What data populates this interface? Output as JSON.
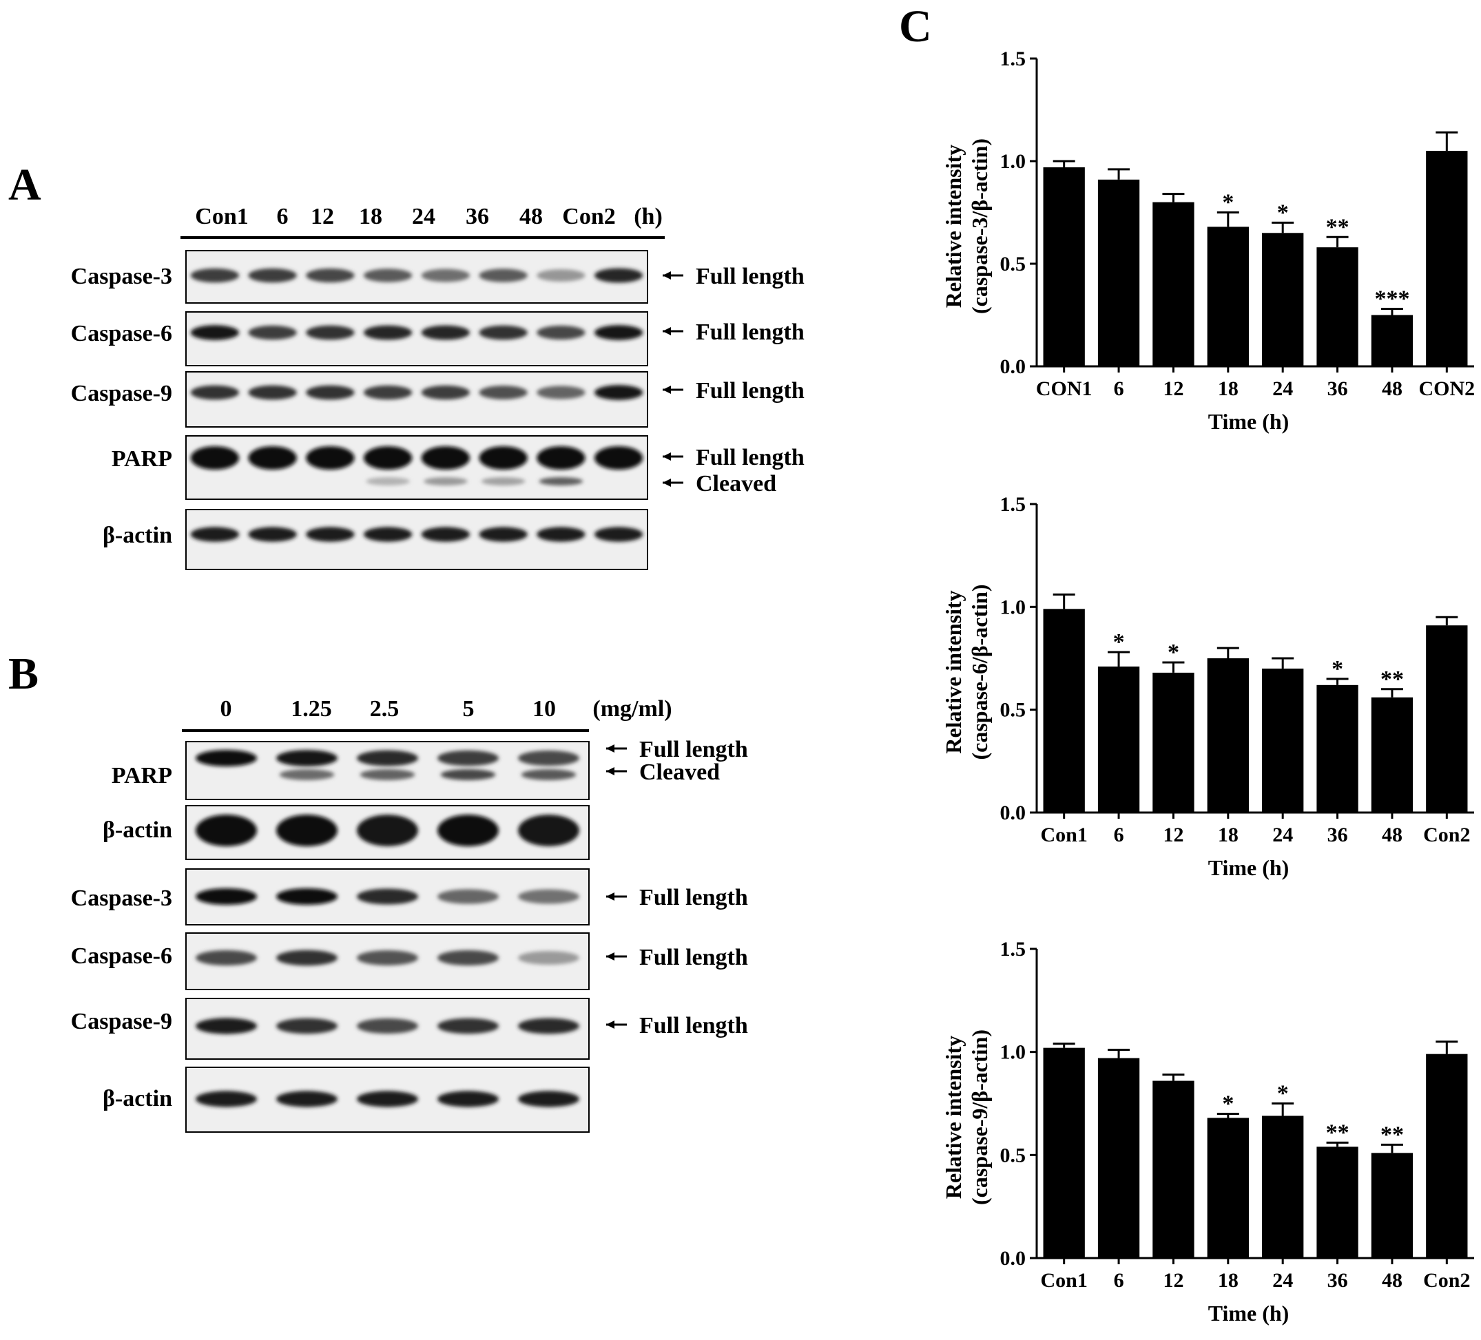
{
  "panels": {
    "A": {
      "letter": "A",
      "lanes": [
        "Con1",
        "6",
        "12",
        "18",
        "24",
        "36",
        "48",
        "Con2",
        "(h)"
      ],
      "blots": [
        {
          "label": "Caspase-3",
          "annotations": [
            "Full length"
          ],
          "intensity": [
            0.75,
            0.75,
            0.7,
            0.6,
            0.5,
            0.6,
            0.3,
            0.85
          ]
        },
        {
          "label": "Caspase-6",
          "annotations": [
            "Full length"
          ],
          "intensity": [
            0.95,
            0.75,
            0.8,
            0.85,
            0.85,
            0.8,
            0.7,
            0.95
          ]
        },
        {
          "label": "Caspase-9",
          "annotations": [
            "Full length"
          ],
          "intensity": [
            0.8,
            0.8,
            0.8,
            0.75,
            0.75,
            0.65,
            0.55,
            0.95
          ]
        },
        {
          "label": "PARP",
          "annotations": [
            "Full length",
            "Cleaved"
          ],
          "intensity": [
            1,
            1,
            1,
            1,
            1,
            1,
            1,
            1
          ],
          "cleaved": [
            0,
            0,
            0,
            0.25,
            0.4,
            0.35,
            0.75,
            0
          ]
        },
        {
          "label": "β-actin",
          "annotations": [],
          "intensity": [
            0.9,
            0.9,
            0.9,
            0.9,
            0.9,
            0.9,
            0.9,
            0.9
          ]
        }
      ]
    },
    "B": {
      "letter": "B",
      "lanes": [
        "0",
        "1.25",
        "2.5",
        "5",
        "10",
        "(mg/ml)"
      ],
      "blots": [
        {
          "label": "PARP",
          "annotations": [
            "Full length",
            "Cleaved"
          ],
          "intensity": [
            1,
            0.95,
            0.85,
            0.75,
            0.7
          ],
          "cleaved": [
            0,
            0.6,
            0.65,
            0.8,
            0.7
          ]
        },
        {
          "label": "β-actin",
          "annotations": [],
          "intensity": [
            1,
            1,
            0.95,
            1,
            0.95
          ]
        },
        {
          "label": "Caspase-3",
          "annotations": [
            "Full length"
          ],
          "intensity": [
            1,
            1,
            0.85,
            0.55,
            0.5
          ]
        },
        {
          "label": "Caspase-6",
          "annotations": [
            "Full length"
          ],
          "intensity": [
            0.7,
            0.8,
            0.65,
            0.7,
            0.3
          ]
        },
        {
          "label": "Caspase-9",
          "annotations": [
            "Full length"
          ],
          "intensity": [
            0.9,
            0.8,
            0.7,
            0.8,
            0.85
          ]
        },
        {
          "label": "β-actin",
          "annotations": [],
          "intensity": [
            0.9,
            0.9,
            0.9,
            0.9,
            0.9
          ]
        }
      ]
    },
    "C": {
      "letter": "C"
    }
  },
  "chart_data": [
    {
      "type": "bar",
      "categories": [
        "CON1",
        "6",
        "12",
        "18",
        "24",
        "36",
        "48",
        "CON2"
      ],
      "values": [
        0.97,
        0.91,
        0.8,
        0.68,
        0.65,
        0.58,
        0.25,
        1.05
      ],
      "errors": [
        0.03,
        0.05,
        0.04,
        0.07,
        0.05,
        0.05,
        0.03,
        0.09
      ],
      "significance": [
        "",
        "",
        "",
        "*",
        "*",
        "**",
        "***",
        ""
      ],
      "xlabel": "Time (h)",
      "ylabel": [
        "Relative intensity",
        "(caspase-3/β-actin)"
      ],
      "ylim": [
        0,
        1.5
      ],
      "yticks": [
        "0.0",
        "0.5",
        "1.0",
        "1.5"
      ]
    },
    {
      "type": "bar",
      "categories": [
        "Con1",
        "6",
        "12",
        "18",
        "24",
        "36",
        "48",
        "Con2"
      ],
      "values": [
        0.99,
        0.71,
        0.68,
        0.75,
        0.7,
        0.62,
        0.56,
        0.91
      ],
      "errors": [
        0.07,
        0.07,
        0.05,
        0.05,
        0.05,
        0.03,
        0.04,
        0.04
      ],
      "significance": [
        "",
        "*",
        "*",
        "",
        "",
        "*",
        "**",
        ""
      ],
      "xlabel": "Time (h)",
      "ylabel": [
        "Relative intensity",
        "(caspase-6/β-actin)"
      ],
      "ylim": [
        0,
        1.5
      ],
      "yticks": [
        "0.0",
        "0.5",
        "1.0",
        "1.5"
      ]
    },
    {
      "type": "bar",
      "categories": [
        "Con1",
        "6",
        "12",
        "18",
        "24",
        "36",
        "48",
        "Con2"
      ],
      "values": [
        1.02,
        0.97,
        0.86,
        0.68,
        0.69,
        0.54,
        0.51,
        0.99
      ],
      "errors": [
        0.02,
        0.04,
        0.03,
        0.02,
        0.06,
        0.02,
        0.04,
        0.06
      ],
      "significance": [
        "",
        "",
        "",
        "*",
        "*",
        "**",
        "**",
        ""
      ],
      "xlabel": "Time (h)",
      "ylabel": [
        "Relative intensity",
        "(caspase-9/β-actin)"
      ],
      "ylim": [
        0,
        1.5
      ],
      "yticks": [
        "0.0",
        "0.5",
        "1.0",
        "1.5"
      ]
    }
  ]
}
